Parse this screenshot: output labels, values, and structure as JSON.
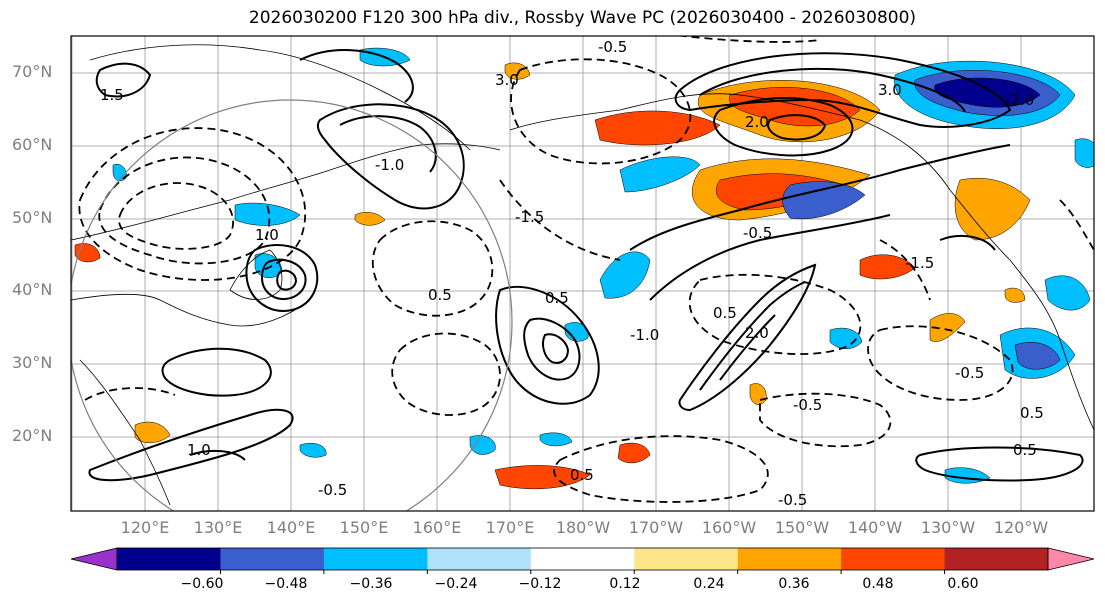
{
  "title": "2026030200 F120 300 hPa div., Rossby Wave PC (2026030400 - 2026030800)",
  "lat_labels": [
    "70°N",
    "60°N",
    "50°N",
    "40°N",
    "30°N",
    "20°N"
  ],
  "lon_labels": [
    "120°E",
    "130°E",
    "140°E",
    "150°E",
    "160°E",
    "170°E",
    "180°W",
    "170°W",
    "160°W",
    "150°W",
    "140°W",
    "130°W",
    "120°W"
  ],
  "colorbar": {
    "ticks": [
      "−0.60",
      "−0.48",
      "−0.36",
      "−0.24",
      "−0.12",
      "0.12",
      "0.24",
      "0.36",
      "0.48",
      "0.60"
    ],
    "colors": [
      "#9932cc",
      "#00008b",
      "#3a5fcd",
      "#00bfff",
      "#aee2fa",
      "#ffffff",
      "#fde68a",
      "#ffa500",
      "#ff4500",
      "#b22222",
      "#ff88aa"
    ]
  },
  "contour_labels": [
    "-0.5",
    "-1.0",
    "-1.5",
    "1.0",
    "0.5",
    "1.5",
    "2.0",
    "3.0",
    "-2.0",
    "-0.5",
    "0.5",
    "0.5",
    "-1.0",
    "1.0",
    "-0.5",
    "0.5",
    "-1.5",
    "2.0",
    "3.0",
    "-0.5",
    "-0.5",
    "0.5",
    "-0.5",
    "0.5"
  ]
}
